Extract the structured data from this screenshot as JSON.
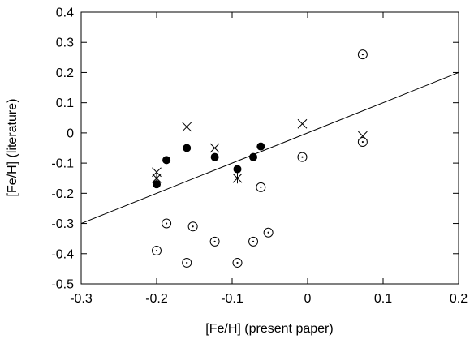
{
  "chart_data": {
    "type": "scatter",
    "xlabel": "[Fe/H] (present paper)",
    "ylabel": "[Fe/H] (literature)",
    "xlim": [
      -0.3,
      0.2
    ],
    "ylim": [
      -0.5,
      0.4
    ],
    "xticks": [
      "-0.3",
      "-0.2",
      "-0.1",
      "0",
      "0.1",
      "0.2"
    ],
    "yticks": [
      "-0.5",
      "-0.4",
      "-0.3",
      "-0.2",
      "-0.1",
      "0",
      "0.1",
      "0.2",
      "0.3",
      "0.4"
    ],
    "grid": false,
    "series": [
      {
        "marker": "filled-circle",
        "points": [
          [
            -0.2,
            -0.17
          ],
          [
            -0.187,
            -0.09
          ],
          [
            -0.16,
            -0.05
          ],
          [
            -0.123,
            -0.08
          ],
          [
            -0.093,
            -0.12
          ],
          [
            -0.072,
            -0.08
          ],
          [
            -0.062,
            -0.045
          ]
        ]
      },
      {
        "marker": "cross",
        "points": [
          [
            -0.2,
            -0.13
          ],
          [
            -0.16,
            0.02
          ],
          [
            -0.123,
            -0.05
          ],
          [
            -0.007,
            0.03
          ],
          [
            0.073,
            -0.01
          ]
        ]
      },
      {
        "marker": "asterisk",
        "points": [
          [
            -0.2,
            -0.15
          ],
          [
            -0.093,
            -0.15
          ]
        ]
      },
      {
        "marker": "dotted-circle",
        "points": [
          [
            -0.2,
            -0.39
          ],
          [
            -0.187,
            -0.3
          ],
          [
            -0.16,
            -0.43
          ],
          [
            -0.152,
            -0.31
          ],
          [
            -0.123,
            -0.36
          ],
          [
            -0.093,
            -0.43
          ],
          [
            -0.072,
            -0.36
          ],
          [
            -0.062,
            -0.18
          ],
          [
            -0.052,
            -0.33
          ],
          [
            -0.007,
            -0.08
          ],
          [
            0.073,
            0.26
          ],
          [
            0.073,
            -0.03
          ]
        ]
      }
    ],
    "fit_line": {
      "x": [
        -0.3,
        0.2
      ],
      "y": [
        -0.3,
        0.2
      ]
    }
  }
}
